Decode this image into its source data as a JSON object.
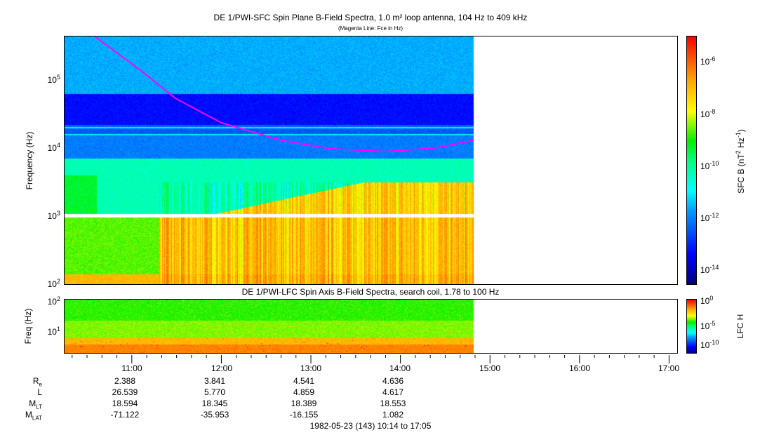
{
  "title": "DE 1/PWI-SFC  Spin Plane B-Field Spectra, 1.0 m² loop antenna, 104 Hz to 409 kHz",
  "subtitle": "(Magenta Line: Fce in Hz)",
  "lower_title": "DE 1/PWI-LFC  Spin Axis B-Field Spectra, search coil, 1.78 to 100 Hz",
  "date_label": "1982-05-23 (143) 10:14 to 17:05",
  "colors": {
    "fce_line": "#ff00ff"
  },
  "chart_data": [
    {
      "type": "heatmap",
      "name": "SFC spectrogram",
      "title": "DE 1/PWI-SFC  Spin Plane B-Field Spectra, 1.0 m² loop antenna, 104 Hz to 409 kHz",
      "ylabel": "Frequency (Hz)",
      "yscale": "log",
      "ylim": [
        100,
        409000
      ],
      "xlim": [
        "10:14",
        "17:05"
      ],
      "data_end": "14:49",
      "yticks": [
        {
          "base": "10",
          "exp": "2"
        },
        {
          "base": "10",
          "exp": "3"
        },
        {
          "base": "10",
          "exp": "4"
        },
        {
          "base": "10",
          "exp": "5"
        }
      ],
      "colorbar": {
        "label": "SFC B (nT",
        "label_exp1": "2",
        "label_mid": " Hz",
        "label_exp2": "-1",
        "label_end": ")",
        "range": [
          3e-15,
          1e-05
        ],
        "ticks": [
          {
            "base": "10",
            "exp": "-6"
          },
          {
            "base": "10",
            "exp": "-8"
          },
          {
            "base": "10",
            "exp": "-10"
          },
          {
            "base": "10",
            "exp": "-12"
          },
          {
            "base": "10",
            "exp": "-14"
          }
        ]
      },
      "fce_line": {
        "name": "Fce",
        "points": [
          [
            "10:35",
            436000
          ],
          [
            "11:06",
            138000
          ],
          [
            "11:29",
            54000
          ],
          [
            "12:00",
            23500
          ],
          [
            "12:40",
            13000
          ],
          [
            "13:13",
            9800
          ],
          [
            "13:50",
            8900
          ],
          [
            "14:23",
            10000
          ],
          [
            "14:49",
            13000
          ]
        ]
      }
    },
    {
      "type": "heatmap",
      "name": "LFC spectrogram",
      "ylabel": "Freq (Hz)",
      "yscale": "log",
      "ylim": [
        1.78,
        100
      ],
      "yticks": [
        {
          "base": "10",
          "exp": "2"
        },
        {
          "base": "10",
          "exp": "1"
        }
      ],
      "colorbar": {
        "label": "LFC H",
        "range": [
          1e-12,
          1
        ],
        "ticks": [
          {
            "base": "10",
            "exp": "0"
          },
          {
            "base": "10",
            "exp": "-5"
          },
          {
            "base": "10",
            "exp": "-10"
          }
        ]
      }
    }
  ],
  "time_ticks": [
    "11:00",
    "12:00",
    "13:00",
    "14:00",
    "15:00",
    "16:00",
    "17:00"
  ],
  "ephemeris": [
    {
      "label": "R",
      "sub": "e",
      "values": [
        "2.388",
        "3.841",
        "4.541",
        "4.636"
      ]
    },
    {
      "label": "L",
      "sub": "",
      "values": [
        "26.539",
        "5.770",
        "4.859",
        "4.617"
      ]
    },
    {
      "label": "M",
      "sub": "LT",
      "values": [
        "18.594",
        "18.345",
        "18.389",
        "18.553"
      ]
    },
    {
      "label": "M",
      "sub": "LAT",
      "values": [
        "-71.122",
        "-35.953",
        "-16.155",
        "1.082"
      ]
    }
  ]
}
